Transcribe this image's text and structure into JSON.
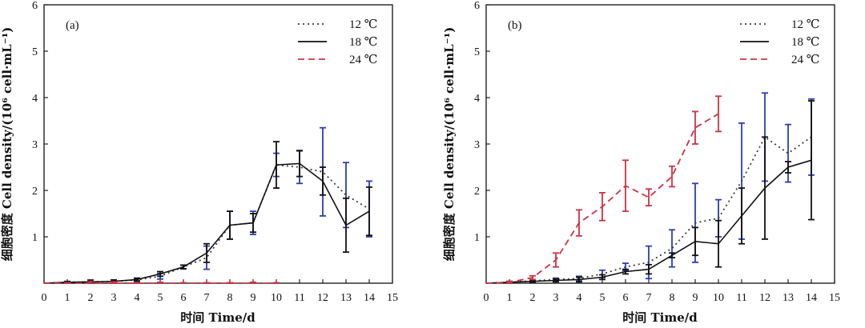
{
  "colors": {
    "axis": "#111111",
    "s12_line": "#3a3a3a",
    "s12_err": "#2a3fb0",
    "s18_line": "#111111",
    "s18_err": "#111111",
    "s24_line": "#cc3344",
    "s24_err": "#cc3344"
  },
  "chart_data": [
    {
      "type": "line",
      "panel_label": "(a)",
      "xlabel": "时间 Time/d",
      "ylabel": "细胞密度 Cell density/(10⁶ cell·mL⁻¹)",
      "xlim": [
        0,
        15
      ],
      "ylim": [
        0,
        6
      ],
      "xticks": [
        "0",
        "1",
        "2",
        "3",
        "4",
        "5",
        "6",
        "7",
        "8",
        "9",
        "10",
        "11",
        "12",
        "13",
        "14",
        "15"
      ],
      "yticks": [
        "1",
        "2",
        "3",
        "4",
        "5",
        "6"
      ],
      "legend_position": "top-right",
      "series": [
        {
          "name": "12 ℃",
          "style": "dotted",
          "key": "s12",
          "x": [
            0,
            1,
            2,
            3,
            4,
            5,
            6,
            7,
            8,
            9,
            10,
            11,
            12,
            13,
            14
          ],
          "values": [
            0,
            0.02,
            0.03,
            0.04,
            0.07,
            0.15,
            0.35,
            0.55,
            1.25,
            1.3,
            2.55,
            2.5,
            2.4,
            1.9,
            1.6
          ],
          "errors": [
            0,
            0.02,
            0.04,
            0.03,
            0.03,
            0.06,
            0.04,
            0.25,
            0.3,
            0.25,
            0.25,
            0.35,
            0.95,
            0.7,
            0.6
          ]
        },
        {
          "name": "18 ℃",
          "style": "solid",
          "key": "s18",
          "x": [
            0,
            1,
            2,
            3,
            4,
            5,
            6,
            7,
            8,
            9,
            10,
            11,
            12,
            13,
            14
          ],
          "values": [
            0,
            0.02,
            0.03,
            0.04,
            0.08,
            0.2,
            0.35,
            0.65,
            1.25,
            1.3,
            2.55,
            2.58,
            2.2,
            1.25,
            1.55
          ],
          "errors": [
            0,
            0.01,
            0.03,
            0.03,
            0.03,
            0.05,
            0.04,
            0.2,
            0.3,
            0.2,
            0.5,
            0.28,
            0.3,
            0.58,
            0.52
          ]
        },
        {
          "name": "24 ℃",
          "style": "dashed",
          "key": "s24",
          "x": [
            0,
            1,
            2,
            3,
            4,
            5,
            6,
            7,
            8,
            9,
            10
          ],
          "values": [
            0,
            0,
            0,
            0,
            0,
            0,
            0,
            0,
            0,
            0,
            0
          ],
          "errors": [
            0,
            0.01,
            0.04,
            0.03,
            0.01,
            0.02,
            0.01,
            0.01,
            0.01,
            0.02,
            0.01
          ]
        }
      ]
    },
    {
      "type": "line",
      "panel_label": "(b)",
      "xlabel": "时间 Time/d",
      "ylabel": "细胞密度 Cell density/(10⁶ cell·mL⁻¹)",
      "xlim": [
        0,
        15
      ],
      "ylim": [
        0,
        6
      ],
      "xticks": [
        "0",
        "1",
        "2",
        "3",
        "4",
        "5",
        "6",
        "7",
        "8",
        "9",
        "10",
        "11",
        "12",
        "13",
        "14",
        "15"
      ],
      "yticks": [
        "1",
        "2",
        "3",
        "4",
        "5",
        "6"
      ],
      "legend_position": "top-right",
      "series": [
        {
          "name": "12 ℃",
          "style": "dotted",
          "key": "s12",
          "x": [
            0,
            1,
            2,
            3,
            4,
            5,
            6,
            7,
            8,
            9,
            10,
            11,
            12,
            13,
            14
          ],
          "values": [
            0,
            0.02,
            0.05,
            0.08,
            0.1,
            0.2,
            0.35,
            0.45,
            0.75,
            1.3,
            1.4,
            2.2,
            3.15,
            2.8,
            3.15
          ],
          "errors": [
            0,
            0.02,
            0.03,
            0.03,
            0.05,
            0.08,
            0.08,
            0.35,
            0.4,
            0.85,
            0.4,
            1.25,
            0.95,
            0.62,
            0.82
          ]
        },
        {
          "name": "18 ℃",
          "style": "solid",
          "key": "s18",
          "x": [
            0,
            1,
            2,
            3,
            4,
            5,
            6,
            7,
            8,
            9,
            10,
            11,
            12,
            13,
            14
          ],
          "values": [
            0,
            0.02,
            0.04,
            0.06,
            0.08,
            0.13,
            0.25,
            0.3,
            0.6,
            0.9,
            0.85,
            1.45,
            2.05,
            2.5,
            2.65
          ],
          "errors": [
            0,
            0.01,
            0.02,
            0.03,
            0.05,
            0.05,
            0.05,
            0.1,
            0.05,
            0.3,
            0.5,
            0.6,
            1.1,
            0.12,
            1.28
          ]
        },
        {
          "name": "24 ℃",
          "style": "dashed",
          "key": "s24",
          "x": [
            0,
            1,
            2,
            3,
            4,
            5,
            6,
            7,
            8,
            9,
            10
          ],
          "values": [
            0,
            0.02,
            0.12,
            0.5,
            1.3,
            1.65,
            2.1,
            1.85,
            2.3,
            3.35,
            3.65
          ],
          "errors": [
            0,
            0.02,
            0.04,
            0.15,
            0.28,
            0.3,
            0.55,
            0.18,
            0.22,
            0.35,
            0.38
          ]
        }
      ]
    }
  ]
}
